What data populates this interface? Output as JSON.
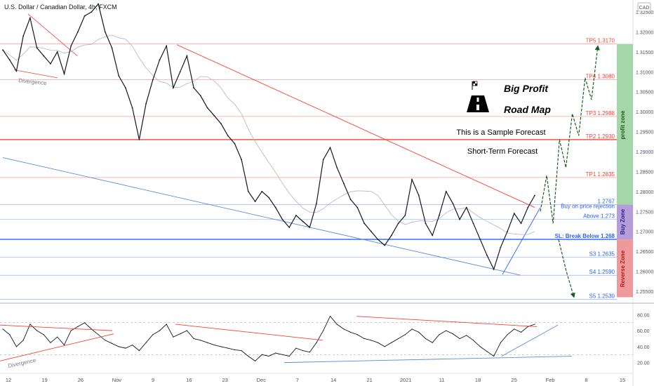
{
  "header": {
    "symbol_title": "U.S. Dollar / Canadian Dollar, 4h, FXCM",
    "currency_badge": "CAD"
  },
  "annotations": {
    "main_title_line1": "Big Profit",
    "main_title_line2": "Road Map",
    "sample_forecast": "This is a Sample Forecast",
    "short_term": "Short-Term Forecast",
    "divergence_price": "Divergence",
    "divergence_rsi": "Divergence"
  },
  "zones": {
    "profit_zone": "profit zone",
    "buy_zone": "Buy Zone",
    "reverse_zone": "Reverse Zone",
    "profit_color": "#a5d6a7",
    "buy_color": "#b39ddb",
    "reverse_color": "#ef9a9a"
  },
  "chart_data": [
    {
      "type": "line",
      "panel": "price",
      "instrument": "U.S. Dollar / Canadian Dollar",
      "timeframe": "4h",
      "source": "FXCM",
      "x_tick_labels": [
        "12",
        "19",
        "26",
        "Nov",
        "9",
        "16",
        "23",
        "Dec",
        "7",
        "14",
        "21",
        "2021",
        "11",
        "18",
        "25",
        "Feb",
        "8",
        "15"
      ],
      "y_axis_labels": [
        "1.32500",
        "1.32000",
        "1.31500",
        "1.31000",
        "1.30500",
        "1.30000",
        "1.29500",
        "1.29000",
        "1.28500",
        "1.28000",
        "1.27500",
        "1.27000",
        "1.26500",
        "1.26000",
        "1.25500"
      ],
      "ylim": [
        1.252,
        1.328
      ],
      "grid": false,
      "series": [
        {
          "values": [
            1.3155,
            1.313,
            1.3102,
            1.319,
            1.3235,
            1.316,
            1.314,
            1.312,
            1.315,
            1.3095,
            1.3165,
            1.32,
            1.324,
            1.325,
            1.327,
            1.32,
            1.316,
            1.309,
            1.306,
            1.301,
            1.293,
            1.302,
            1.308,
            1.313,
            1.3165,
            1.306,
            1.31,
            1.314,
            1.306,
            1.304,
            1.301,
            1.299,
            1.297,
            1.294,
            1.292,
            1.288,
            1.28,
            1.2775,
            1.28,
            1.2785,
            1.276,
            1.273,
            1.271,
            1.274,
            1.2725,
            1.271,
            1.277,
            1.288,
            1.291,
            1.286,
            1.282,
            1.278,
            1.276,
            1.272,
            1.27,
            1.268,
            1.2665,
            1.269,
            1.272,
            1.274,
            1.283,
            1.279,
            1.272,
            1.269,
            1.274,
            1.28,
            1.277,
            1.273,
            1.276,
            1.272,
            1.268,
            1.264,
            1.2605,
            1.266,
            1.27,
            1.2745,
            1.272,
            1.276,
            1.279
          ]
        }
      ],
      "price_levels": [
        {
          "label": "TP5 1.3170",
          "value": 1.317,
          "color": "#f44336"
        },
        {
          "label": "TP4 1.3080",
          "value": 1.308,
          "color": "#f44336"
        },
        {
          "label": "TP3 1.2988",
          "value": 1.2988,
          "color": "#f44336"
        },
        {
          "label": "TP2 1.2930",
          "value": 1.293,
          "color": "#f44336"
        },
        {
          "label": "TP1 1.2835",
          "value": 1.2835,
          "color": "#f44336"
        },
        {
          "label": "1.2767",
          "value": 1.2767,
          "color": "#2962ff"
        },
        {
          "label": "Buy on price rejection",
          "value": 1.2755,
          "color": "#2962ff"
        },
        {
          "label": "Above 1.273",
          "value": 1.273,
          "color": "#2962ff"
        },
        {
          "label": "SL: Break Below 1.268",
          "value": 1.268,
          "color": "#2962ff"
        },
        {
          "label": "S3 1.2635",
          "value": 1.2635,
          "color": "#2962ff"
        },
        {
          "label": "S4 1.2590",
          "value": 1.259,
          "color": "#2962ff"
        },
        {
          "label": "S5 1.2530",
          "value": 1.253,
          "color": "#2962ff"
        }
      ],
      "forecast_path_up": [
        1.275,
        1.284,
        1.272,
        1.293,
        1.286,
        1.2995,
        1.294,
        1.3085,
        1.303,
        1.3165
      ],
      "forecast_path_down": [
        1.268,
        1.26,
        1.2535
      ]
    },
    {
      "type": "line",
      "panel": "oscillator",
      "y_axis_labels": [
        "80.00",
        "60.00",
        "40.00",
        "20.00"
      ],
      "ylim": [
        10,
        90
      ],
      "reference_lines": [
        70,
        30
      ],
      "series": [
        {
          "values": [
            62,
            55,
            40,
            48,
            68,
            60,
            55,
            45,
            52,
            42,
            60,
            65,
            70,
            62,
            55,
            48,
            44,
            40,
            38,
            42,
            35,
            45,
            55,
            60,
            68,
            52,
            56,
            60,
            50,
            48,
            45,
            42,
            40,
            38,
            36,
            35,
            28,
            22,
            30,
            28,
            32,
            30,
            28,
            38,
            35,
            33,
            45,
            60,
            78,
            68,
            62,
            58,
            55,
            50,
            48,
            45,
            40,
            45,
            50,
            55,
            62,
            58,
            50,
            45,
            55,
            60,
            56,
            50,
            54,
            48,
            40,
            34,
            28,
            45,
            55,
            62,
            58,
            65,
            68
          ]
        }
      ]
    }
  ]
}
